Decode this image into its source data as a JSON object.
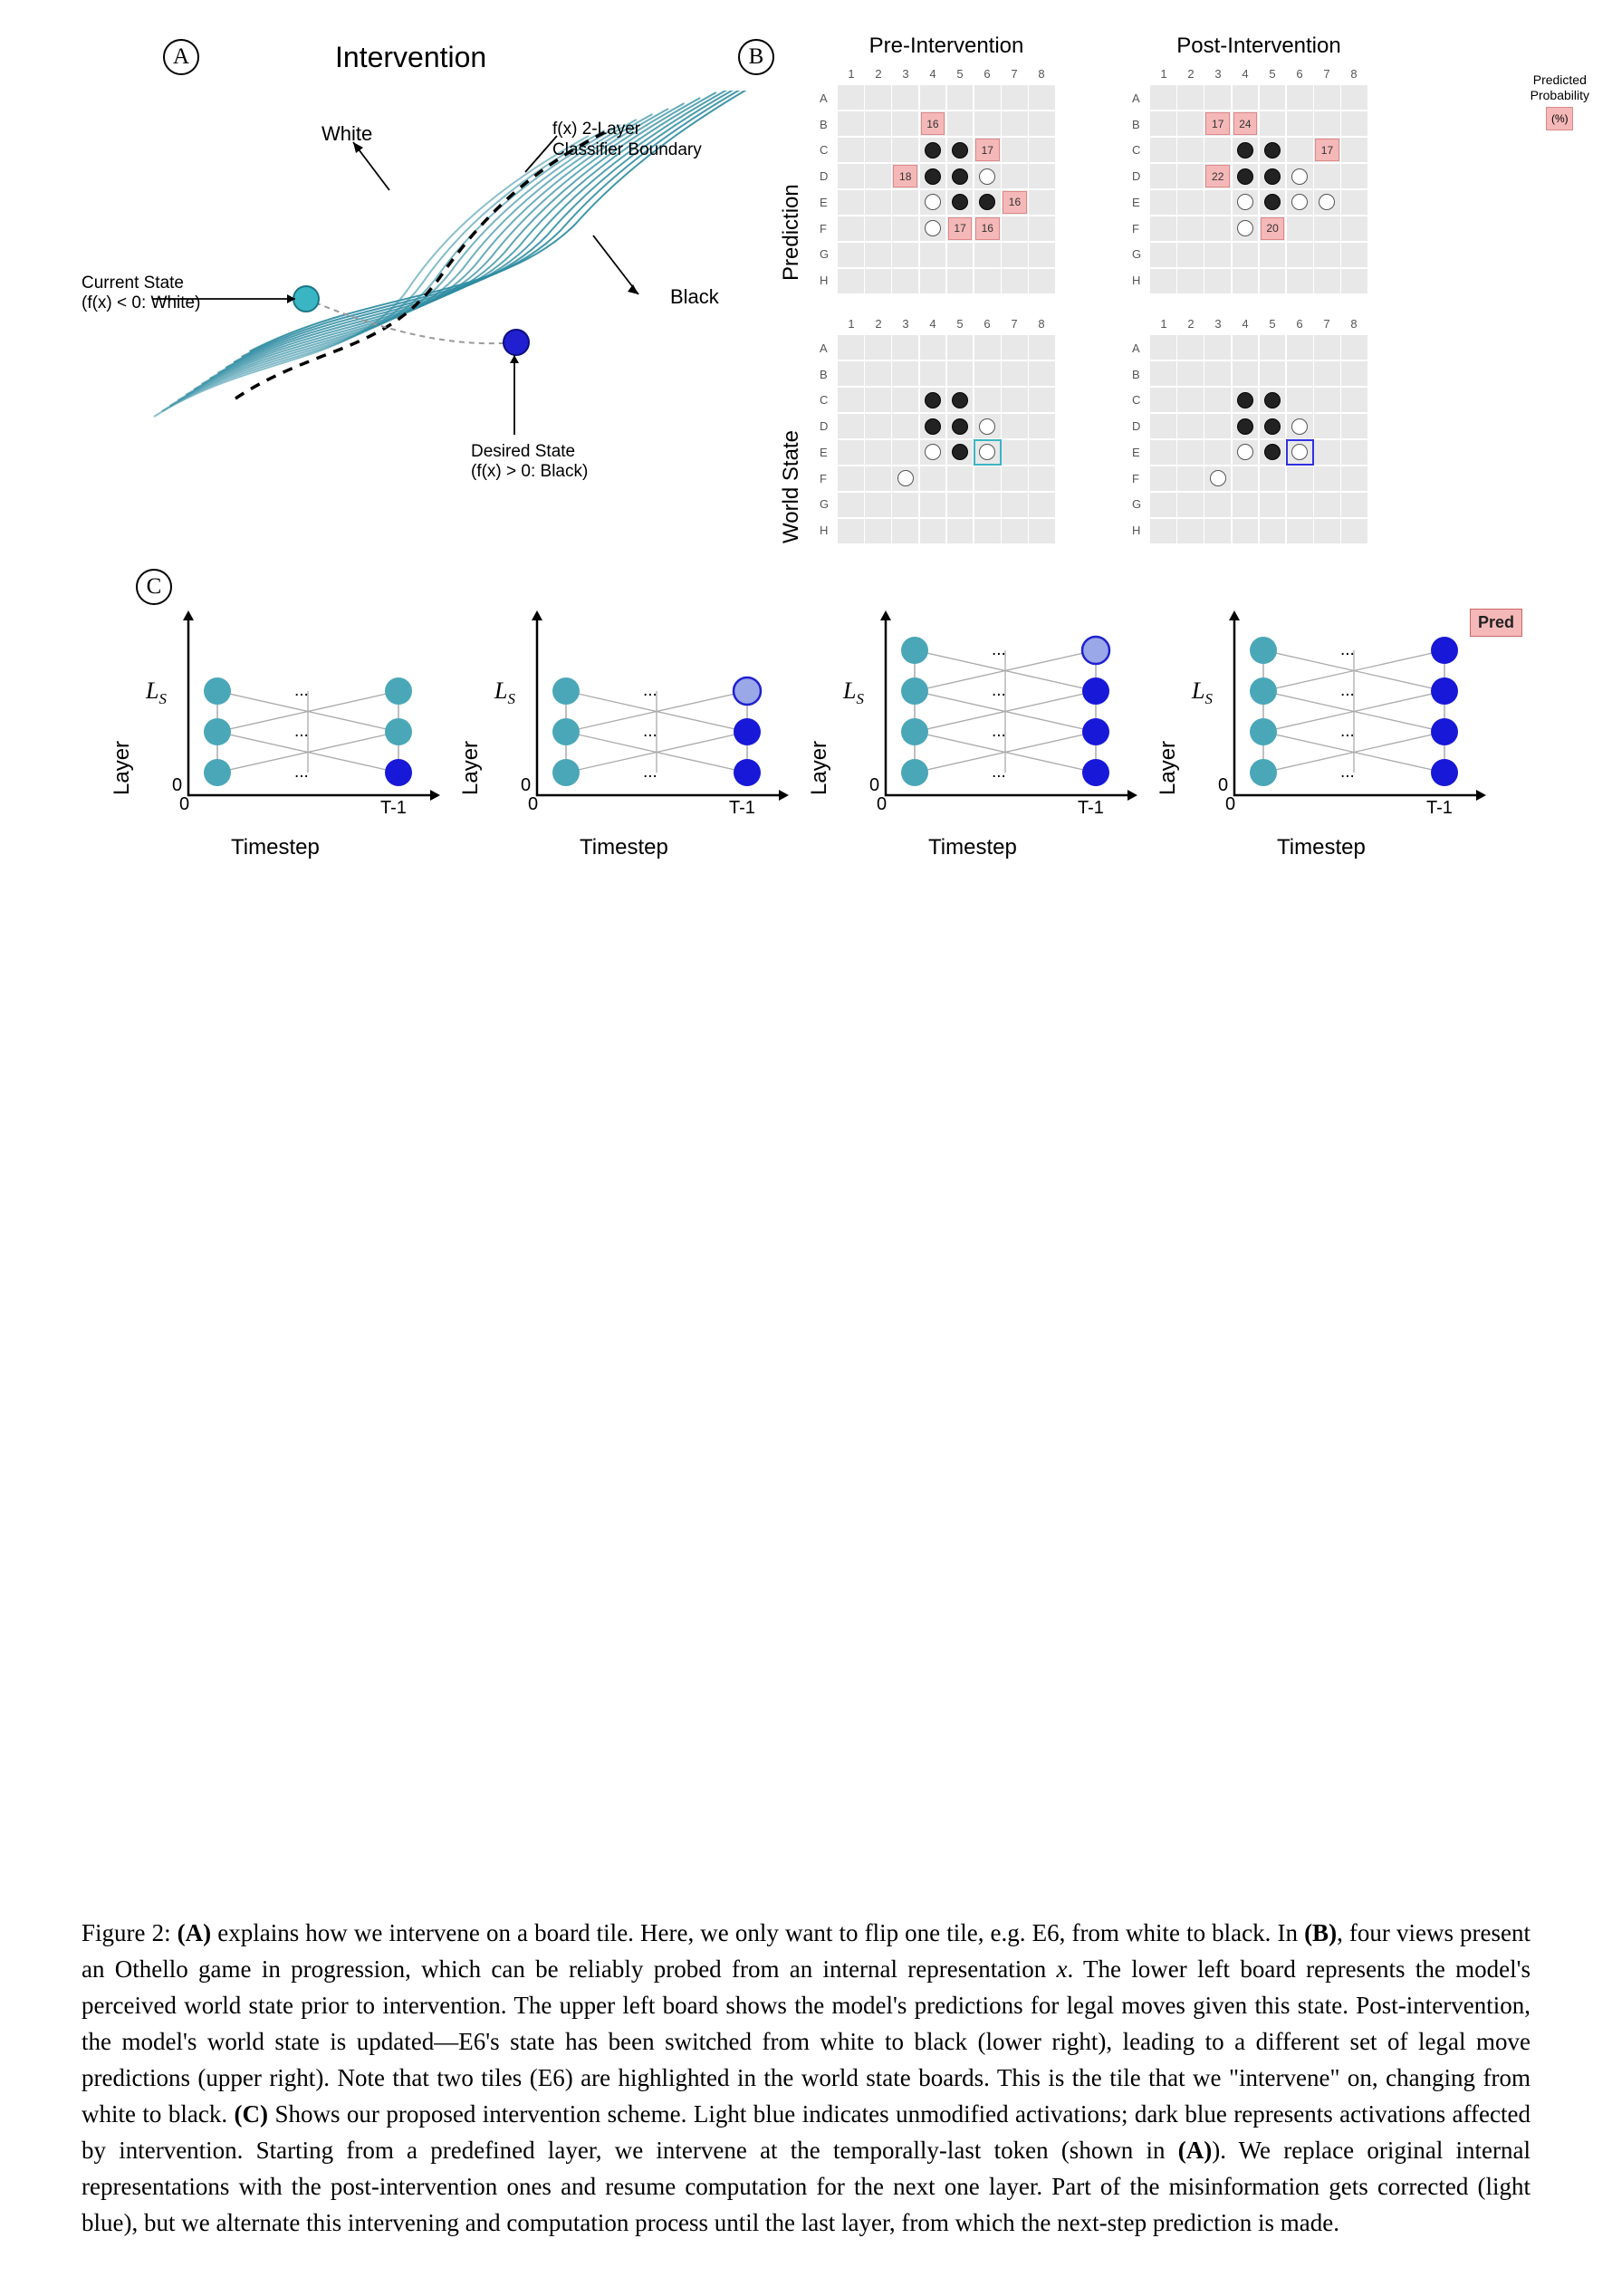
{
  "panelA": {
    "label": "A",
    "title": "Intervention",
    "whiteLabel": "White",
    "blackLabel": "Black",
    "boundaryLabel": "f(x) 2-Layer\nClassifier Boundary",
    "currentStateLabel": "Current State\n(f(x) < 0: White)",
    "desiredStateLabel": "Desired State\n(f(x) > 0: Black)",
    "lineColor": "#2a8aa0",
    "currentDotColor": "#3ab5c4",
    "desiredDotColor": "#2020d0",
    "boundaryColor": "#000000"
  },
  "panelB": {
    "label": "B",
    "colTitles": [
      "Pre-Intervention",
      "Post-Intervention"
    ],
    "rowTitles": [
      "Prediction",
      "World State"
    ],
    "colHeaders": [
      "1",
      "2",
      "3",
      "4",
      "5",
      "6",
      "7",
      "8"
    ],
    "rowHeaders": [
      "A",
      "B",
      "C",
      "D",
      "E",
      "F",
      "G",
      "H"
    ],
    "legend": {
      "label": "Predicted\nProbability",
      "unit": "(%)"
    },
    "cellBg": "#e8e8e8",
    "predBg": "#f5b8b8",
    "predBorder": "#d88888",
    "hlCyan": "#3ab5c4",
    "hlBlue": "#3030e0",
    "boards": {
      "predPre": {
        "predictions": [
          {
            "r": 1,
            "c": 3,
            "v": "16"
          },
          {
            "r": 2,
            "c": 5,
            "v": "17"
          },
          {
            "r": 3,
            "c": 2,
            "v": "18"
          },
          {
            "r": 4,
            "c": 6,
            "v": "16"
          },
          {
            "r": 5,
            "c": 4,
            "v": "17"
          },
          {
            "r": 5,
            "c": 5,
            "v": "16"
          }
        ],
        "black": [
          [
            2,
            3
          ],
          [
            2,
            4
          ],
          [
            3,
            3
          ],
          [
            3,
            4
          ],
          [
            4,
            4
          ],
          [
            4,
            5
          ]
        ],
        "white": [
          [
            3,
            5
          ],
          [
            4,
            3
          ],
          [
            5,
            3
          ]
        ],
        "highlight": null
      },
      "predPost": {
        "predictions": [
          {
            "r": 1,
            "c": 2,
            "v": "17"
          },
          {
            "r": 1,
            "c": 3,
            "v": "24"
          },
          {
            "r": 2,
            "c": 6,
            "v": "17"
          },
          {
            "r": 3,
            "c": 2,
            "v": "22"
          },
          {
            "r": 5,
            "c": 4,
            "v": "20"
          }
        ],
        "black": [
          [
            2,
            3
          ],
          [
            2,
            4
          ],
          [
            3,
            3
          ],
          [
            3,
            4
          ],
          [
            4,
            4
          ]
        ],
        "white": [
          [
            3,
            5
          ],
          [
            4,
            3
          ],
          [
            4,
            5
          ],
          [
            4,
            6
          ],
          [
            5,
            3
          ]
        ],
        "highlight": null
      },
      "worldPre": {
        "predictions": [],
        "black": [
          [
            2,
            3
          ],
          [
            2,
            4
          ],
          [
            3,
            3
          ],
          [
            3,
            4
          ],
          [
            4,
            4
          ]
        ],
        "white": [
          [
            3,
            5
          ],
          [
            4,
            3
          ],
          [
            4,
            5
          ],
          [
            5,
            2
          ]
        ],
        "highlight": {
          "r": 4,
          "c": 5,
          "color": "cyan"
        }
      },
      "worldPost": {
        "predictions": [],
        "black": [
          [
            2,
            3
          ],
          [
            2,
            4
          ],
          [
            3,
            3
          ],
          [
            3,
            4
          ],
          [
            4,
            4
          ]
        ],
        "white": [
          [
            3,
            5
          ],
          [
            4,
            3
          ],
          [
            4,
            5
          ],
          [
            5,
            2
          ]
        ],
        "highlight": {
          "r": 4,
          "c": 5,
          "color": "blue"
        }
      }
    }
  },
  "panelC": {
    "label": "C",
    "yLabel": "Layer",
    "xLabel": "Timestep",
    "lsLabel": "L",
    "lsSub": "S",
    "xTick0": "0",
    "xTickT": "T-1",
    "yTick0": "0",
    "dots": "...",
    "predLabel": "Pred",
    "lightColor": "#4aa7b8",
    "darkColor": "#1818d8",
    "halfColor": "#9aa8e8",
    "nCols": 3,
    "nRows": 4,
    "subplots": [
      {
        "dark": [
          [
            0,
            2
          ]
        ],
        "half": [],
        "extra": false
      },
      {
        "dark": [
          [
            0,
            2
          ],
          [
            1,
            2
          ]
        ],
        "half": [
          [
            2,
            2
          ]
        ],
        "extra": false
      },
      {
        "dark": [
          [
            0,
            2
          ],
          [
            1,
            2
          ],
          [
            2,
            2
          ]
        ],
        "half": [
          [
            3,
            2
          ]
        ],
        "extra": true
      },
      {
        "dark": [
          [
            0,
            2
          ],
          [
            1,
            2
          ],
          [
            2,
            2
          ],
          [
            3,
            2
          ]
        ],
        "half": [],
        "extra": true,
        "topDark": true
      }
    ]
  },
  "caption": {
    "figLabel": "Figure 2:",
    "text": "(A) explains how we intervene on a board tile. Here, we only want to flip one tile, e.g. E6, from white to black. In (B), four views present an Othello game in progression, which can be reliably probed from an internal representation x. The lower left board represents the model's perceived world state prior to intervention. The upper left board shows the model's predictions for legal moves given this state. Post-intervention, the model's world state is updated—E6's state has been switched from white to black (lower right), leading to a different set of legal move predictions (upper right). Note that two tiles (E6) are highlighted in the world state boards. This is the tile that we \"intervene\" on, changing from white to black. (C) Shows our proposed intervention scheme. Light blue indicates unmodified activations; dark blue represents activations affected by intervention. Starting from a predefined layer, we intervene at the temporally-last token (shown in (A)). We replace original internal representations with the post-intervention ones and resume computation for the next one layer. Part of the misinformation gets corrected (light blue), but we alternate this intervening and computation process until the last layer, from which the next-step prediction is made."
  }
}
